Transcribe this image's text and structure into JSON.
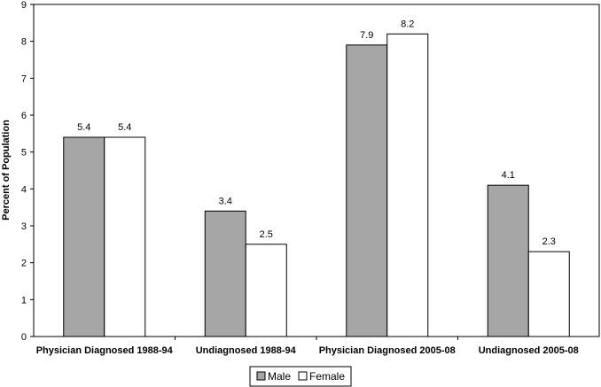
{
  "chart_data": {
    "type": "bar",
    "title": "",
    "xlabel": "",
    "ylabel": "Percent of Population",
    "ylim": [
      0,
      9
    ],
    "yticks": [
      0,
      1,
      2,
      3,
      4,
      5,
      6,
      7,
      8,
      9
    ],
    "grid": false,
    "legend_position": "bottom-center",
    "categories": [
      "Physician Diagnosed 1988-94",
      "Undiagnosed 1988-94",
      "Physician Diagnosed 2005-08",
      "Undiagnosed 2005-08"
    ],
    "series": [
      {
        "name": "Male",
        "values": [
          5.4,
          3.4,
          7.9,
          4.1
        ],
        "color": "#a6a6a6"
      },
      {
        "name": "Female",
        "values": [
          5.4,
          2.5,
          8.2,
          2.3
        ],
        "color": "#ffffff"
      }
    ],
    "data_labels": [
      [
        "5.4",
        "3.4",
        "7.9",
        "4.1"
      ],
      [
        "5.4",
        "2.5",
        "8.2",
        "2.3"
      ]
    ]
  }
}
